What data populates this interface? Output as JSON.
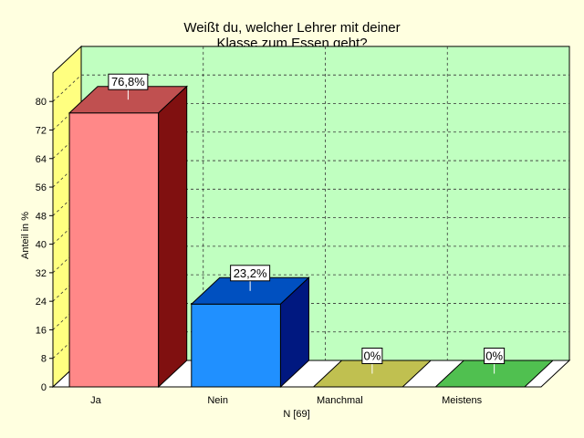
{
  "chart_data": {
    "type": "bar",
    "title": "Weißt du, welcher Lehrer mit deiner",
    "subtitle": "Klasse zum Essen geht?",
    "xlabel": "N [69]",
    "ylabel": "Anteil in %",
    "categories": [
      "Ja",
      "Nein",
      "Manchmal",
      "Meistens"
    ],
    "values": [
      76.8,
      23.2,
      0,
      0
    ],
    "data_labels": [
      "76,8%",
      "23,2%",
      "0%",
      "0%"
    ],
    "yticks": [
      0,
      8,
      16,
      24,
      32,
      40,
      48,
      56,
      64,
      72,
      80
    ],
    "ylim": [
      0,
      88
    ],
    "grid": true,
    "legend": "none",
    "colors": {
      "background": "#FFFFE0",
      "back_wall": "#C0FFC0",
      "side_wall": "#FFFF80",
      "floor": "#FFFFFF",
      "bars": [
        {
          "front": "#FF8888",
          "top": "#C05050",
          "side": "#801010"
        },
        {
          "front": "#2090FF",
          "top": "#0050C0",
          "side": "#001880"
        },
        {
          "front": "#C0C050",
          "top": "#C0C050",
          "side": "#909030"
        },
        {
          "front": "#50C050",
          "top": "#50C050",
          "side": "#309030"
        }
      ]
    }
  }
}
